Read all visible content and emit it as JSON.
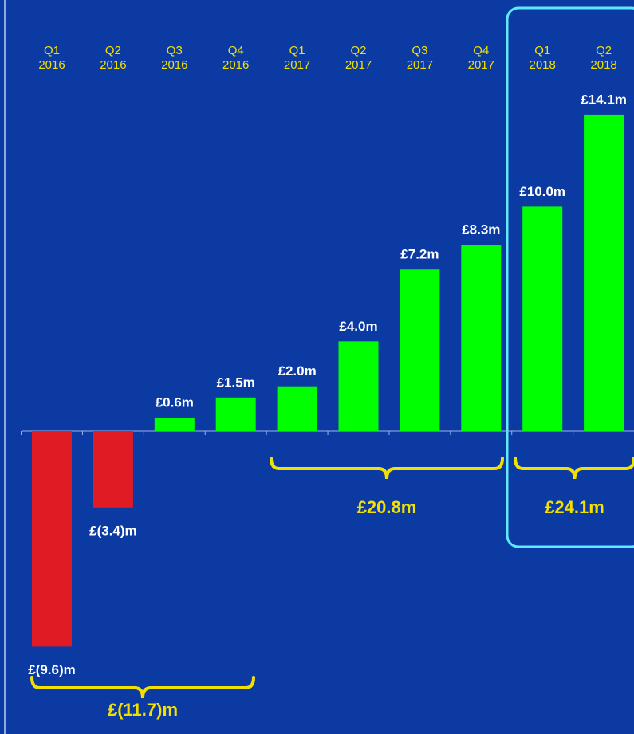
{
  "chart_data": {
    "type": "bar",
    "categories": [
      [
        "Q1",
        "2016"
      ],
      [
        "Q2",
        "2016"
      ],
      [
        "Q3",
        "2016"
      ],
      [
        "Q4",
        "2016"
      ],
      [
        "Q1",
        "2017"
      ],
      [
        "Q2",
        "2017"
      ],
      [
        "Q3",
        "2017"
      ],
      [
        "Q4",
        "2017"
      ],
      [
        "Q1",
        "2018"
      ],
      [
        "Q2",
        "2018"
      ]
    ],
    "values": [
      -9.6,
      -3.4,
      0.6,
      1.5,
      2.0,
      4.0,
      7.2,
      8.3,
      10.0,
      14.1
    ],
    "value_labels": [
      "£(9.6)m",
      "£(3.4)m",
      "£0.6m",
      "£1.5m",
      "£2.0m",
      "£4.0m",
      "£7.2m",
      "£8.3m",
      "£10.0m",
      "£14.1m"
    ],
    "colors": {
      "negative": "#e01b23",
      "positive": "#00ff00"
    },
    "ylim": [
      -12,
      16
    ],
    "annotations": [
      "£(11.7)m",
      "£20.8m",
      "£24.1m"
    ]
  }
}
